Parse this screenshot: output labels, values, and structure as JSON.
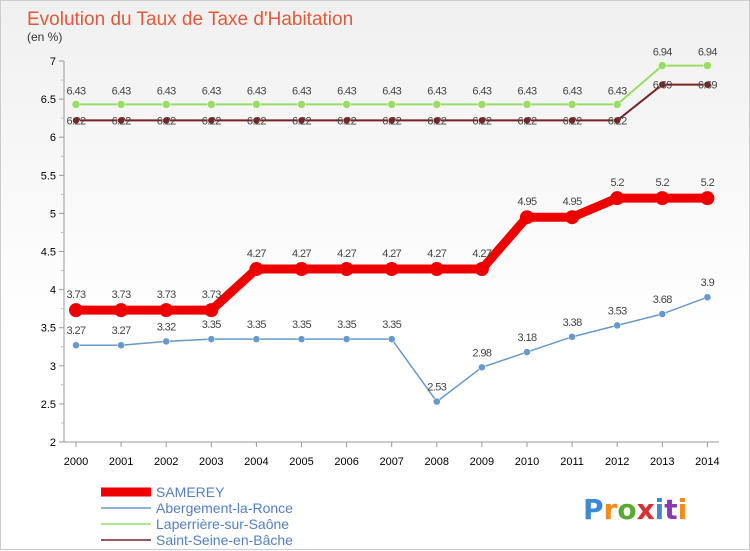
{
  "chart_data": {
    "type": "line",
    "title": "Evolution du Taux de Taxe d'Habitation",
    "subtitle": "(en %)",
    "xlabel": "",
    "ylabel": "",
    "x": [
      "2000",
      "2001",
      "2002",
      "2003",
      "2004",
      "2005",
      "2006",
      "2007",
      "2008",
      "2009",
      "2010",
      "2011",
      "2012",
      "2013",
      "2014"
    ],
    "ylim": [
      2,
      7
    ],
    "yticks": [
      "2",
      "2.5",
      "3",
      "3.5",
      "4",
      "4.5",
      "5",
      "5.5",
      "6",
      "6.5",
      "7"
    ],
    "grid": false,
    "legend_position": "bottom-left",
    "series": [
      {
        "name": "SAMEREY",
        "color": "#ee0000",
        "values": [
          3.73,
          3.73,
          3.73,
          3.73,
          4.27,
          4.27,
          4.27,
          4.27,
          4.27,
          4.27,
          4.95,
          4.95,
          5.2,
          5.2,
          5.2
        ],
        "labels": [
          "3.73",
          "3.73",
          "3.73",
          "3.73",
          "4.27",
          "4.27",
          "4.27",
          "4.27",
          "4.27",
          "4.27",
          "4.95",
          "4.95",
          "5.2",
          "5.2",
          "5.2"
        ]
      },
      {
        "name": "Abergement-la-Ronce",
        "color": "#6699cc",
        "values": [
          3.27,
          3.27,
          3.32,
          3.35,
          3.35,
          3.35,
          3.35,
          3.35,
          2.53,
          2.98,
          3.18,
          3.38,
          3.53,
          3.68,
          3.9
        ],
        "labels": [
          "3.27",
          "3.27",
          "3.32",
          "3.35",
          "3.35",
          "3.35",
          "3.35",
          "3.35",
          "2.53",
          "2.98",
          "3.18",
          "3.38",
          "3.53",
          "3.68",
          "3.9"
        ]
      },
      {
        "name": "Laperrière-sur-Saône",
        "color": "#99dd66",
        "values": [
          6.43,
          6.43,
          6.43,
          6.43,
          6.43,
          6.43,
          6.43,
          6.43,
          6.43,
          6.43,
          6.43,
          6.43,
          6.43,
          6.94,
          6.94
        ],
        "labels": [
          "6.43",
          "6.43",
          "6.43",
          "6.43",
          "6.43",
          "6.43",
          "6.43",
          "6.43",
          "6.43",
          "6.43",
          "6.43",
          "6.43",
          "6.43",
          "6.94",
          "6.94"
        ]
      },
      {
        "name": "Saint-Seine-en-Bâche",
        "color": "#7a2222",
        "values": [
          6.22,
          6.22,
          6.22,
          6.22,
          6.22,
          6.22,
          6.22,
          6.22,
          6.22,
          6.22,
          6.22,
          6.22,
          6.22,
          6.69,
          6.69
        ],
        "labels": [
          "6.22",
          "6.22",
          "6.22",
          "6.22",
          "6.22",
          "6.22",
          "6.22",
          "6.22",
          "6.22",
          "6.22",
          "6.22",
          "6.22",
          "6.22",
          "6.69",
          "6.69"
        ]
      }
    ]
  },
  "brand": {
    "logo_text": "Proxiti",
    "logo_colors": [
      "#3a8ad8",
      "#f08c1a",
      "#5aaa30",
      "#d83030",
      "#3a8ad8",
      "#8a3ab0",
      "#f08c1a"
    ]
  }
}
